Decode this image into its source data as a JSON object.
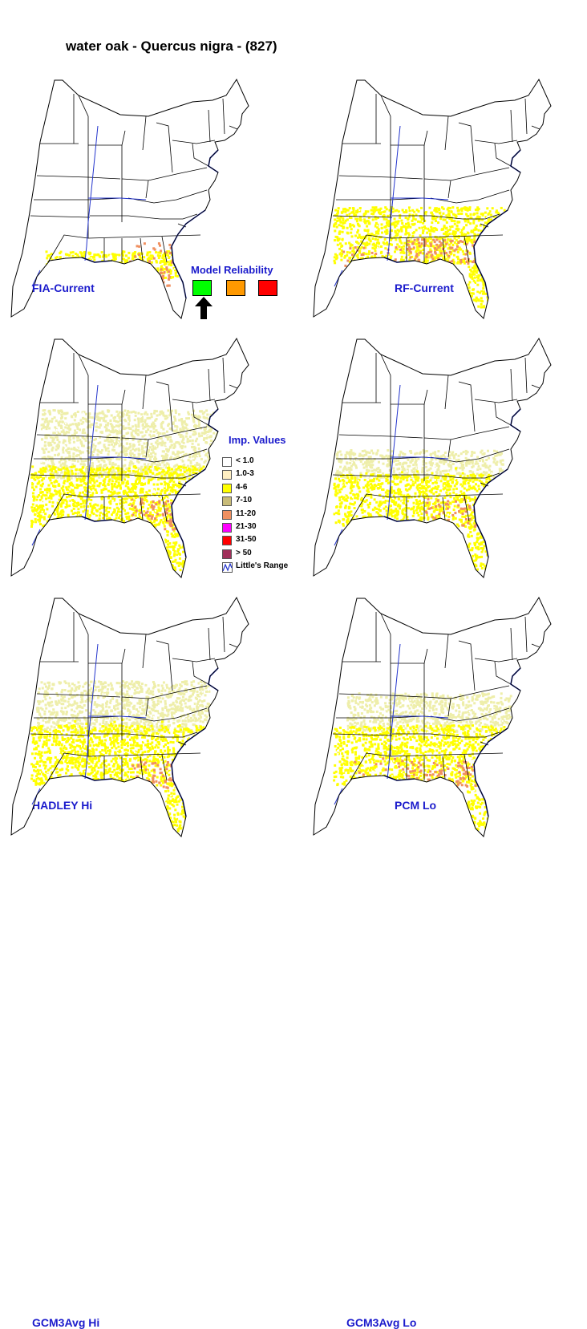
{
  "title": "water oak - Quercus nigra - (827)",
  "panels": [
    {
      "label": "FIA-Current",
      "variant": "fia"
    },
    {
      "label": "RF-Current",
      "variant": "rf"
    },
    {
      "label": "HADLEY Hi",
      "variant": "hadley"
    },
    {
      "label": "PCM Lo",
      "variant": "pcm"
    },
    {
      "label": "GCM3Avg Hi",
      "variant": "gcmhi"
    },
    {
      "label": "GCM3Avg Lo",
      "variant": "gcmlo"
    }
  ],
  "model_reliability": {
    "title": "Model Reliability",
    "swatches": [
      "#00ff00",
      "#ff9900",
      "#ff0000"
    ],
    "selected_index": 0
  },
  "legend": {
    "title": "Imp. Values",
    "items": [
      {
        "label": "< 1.0",
        "color": "#ffffff"
      },
      {
        "label": "1.0-3",
        "color": "#ffefc2"
      },
      {
        "label": "4-6",
        "color": "#ffff00"
      },
      {
        "label": "7-10",
        "color": "#c8bb78"
      },
      {
        "label": "11-20",
        "color": "#f09060"
      },
      {
        "label": "21-30",
        "color": "#ff00ff"
      },
      {
        "label": "31-50",
        "color": "#ff0000"
      },
      {
        "label": "> 50",
        "color": "#a0305a"
      },
      {
        "label": "Little's Range",
        "icon": "range-line-icon"
      }
    ]
  }
}
